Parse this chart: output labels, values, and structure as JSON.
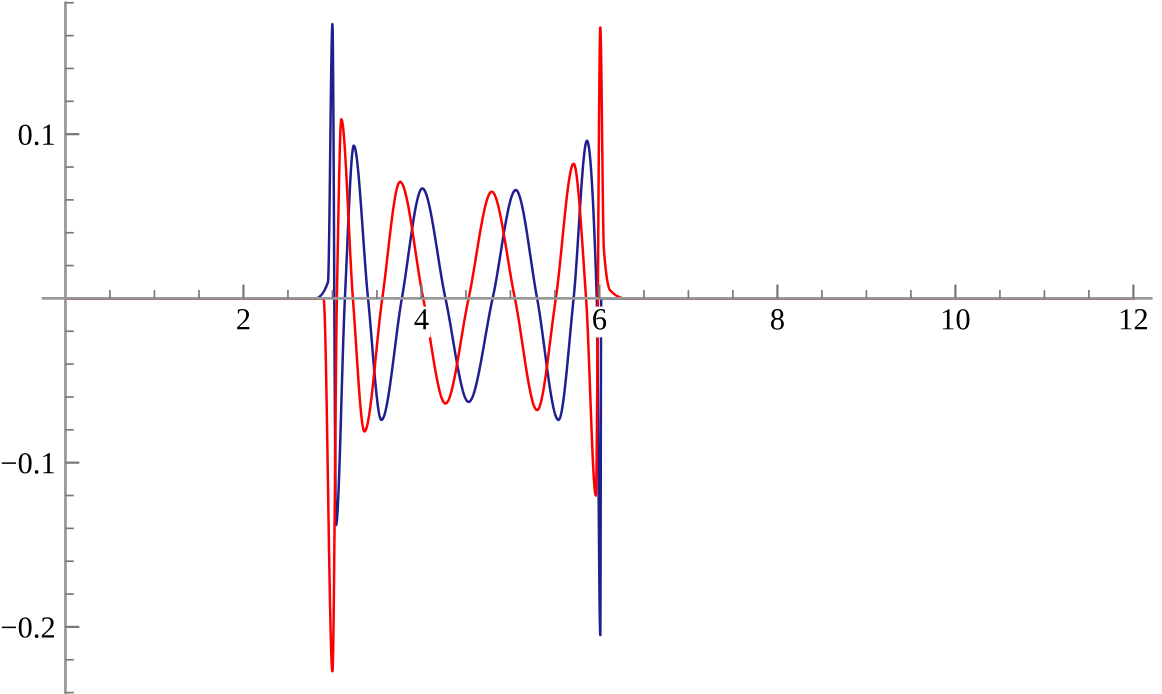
{
  "chart_data": {
    "type": "line",
    "xlim": [
      -0.25,
      12.2
    ],
    "ylim": [
      -0.24,
      0.18
    ],
    "xticks": [
      {
        "value": 0.5,
        "label": null
      },
      {
        "value": 1,
        "label": null
      },
      {
        "value": 1.5,
        "label": null
      },
      2,
      {
        "value": 2.5,
        "label": null
      },
      {
        "value": 3,
        "label": null
      },
      {
        "value": 3.5,
        "label": null
      },
      4,
      {
        "value": 4.5,
        "label": null
      },
      {
        "value": 5,
        "label": null
      },
      {
        "value": 5.5,
        "label": null
      },
      6,
      {
        "value": 6.5,
        "label": null
      },
      {
        "value": 7,
        "label": null
      },
      {
        "value": 7.5,
        "label": null
      },
      8,
      {
        "value": 8.5,
        "label": null
      },
      {
        "value": 9,
        "label": null
      },
      {
        "value": 9.5,
        "label": null
      },
      10,
      {
        "value": 10.5,
        "label": null
      },
      {
        "value": 11,
        "label": null
      },
      {
        "value": 11.5,
        "label": null
      },
      12
    ],
    "yticks": [
      {
        "value": -0.24,
        "label": null
      },
      {
        "value": -0.22,
        "label": null
      },
      {
        "value": -0.2,
        "label": "−0.2"
      },
      {
        "value": -0.18,
        "label": null
      },
      {
        "value": -0.16,
        "label": null
      },
      {
        "value": -0.14,
        "label": null
      },
      {
        "value": -0.12,
        "label": null
      },
      {
        "value": -0.1,
        "label": "−0.1"
      },
      {
        "value": -0.08,
        "label": null
      },
      {
        "value": -0.06,
        "label": null
      },
      {
        "value": -0.04,
        "label": null
      },
      {
        "value": -0.02,
        "label": null
      },
      {
        "value": 0.02,
        "label": null
      },
      {
        "value": 0.04,
        "label": null
      },
      {
        "value": 0.06,
        "label": null
      },
      {
        "value": 0.08,
        "label": null
      },
      0.1,
      {
        "value": 0.12,
        "label": null
      },
      {
        "value": 0.14,
        "label": null
      },
      {
        "value": 0.16,
        "label": null
      },
      {
        "value": 0.18,
        "label": null
      }
    ],
    "grid": false,
    "legend": false,
    "marker": "none",
    "line_style": "solid",
    "series": [
      {
        "color": "#1f1f8f",
        "x": [
          0,
          2.8,
          2.95,
          3.0,
          3.04,
          3.14,
          3.24,
          3.4,
          3.55,
          3.78,
          4.01,
          4.27,
          4.53,
          4.8,
          5.06,
          5.3,
          5.54,
          5.71,
          5.86,
          5.97,
          6.01,
          6.02,
          12
        ],
        "values": [
          0,
          0,
          0.01,
          0.167,
          -0.138,
          0,
          0.093,
          0,
          -0.074,
          0,
          0.067,
          0,
          -0.063,
          0,
          0.066,
          0,
          -0.074,
          0,
          0.096,
          0,
          -0.205,
          0,
          0
        ]
      },
      {
        "color": "#ff0000",
        "x": [
          0,
          2.9,
          3.0,
          3.05,
          3.1,
          3.23,
          3.36,
          3.56,
          3.76,
          4.02,
          4.27,
          4.53,
          4.79,
          5.05,
          5.3,
          5.51,
          5.71,
          5.85,
          5.96,
          6.01,
          6.05,
          6.12,
          6.3,
          12
        ],
        "values": [
          0,
          0,
          -0.227,
          0,
          0.109,
          0,
          -0.081,
          0,
          0.071,
          0,
          -0.064,
          0,
          0.065,
          0,
          -0.068,
          0,
          0.082,
          0,
          -0.12,
          0.165,
          0.03,
          0.005,
          0,
          0
        ]
      }
    ]
  }
}
